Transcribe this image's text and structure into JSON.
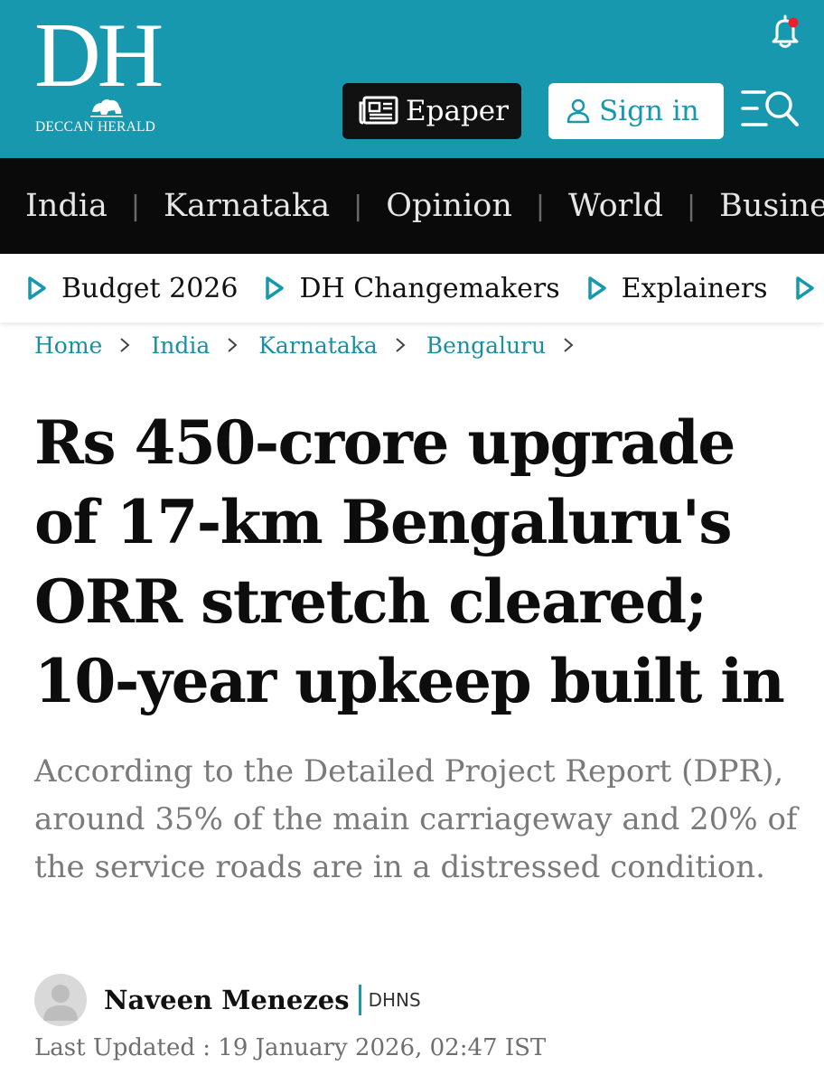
{
  "site": {
    "logo_mark": "DH",
    "logo_name": "DECCAN HERALD",
    "accent_color": "#1898ae"
  },
  "header": {
    "epaper_label": "Epaper",
    "signin_label": "Sign in",
    "icons": [
      "notification-bell-icon",
      "newspaper-icon",
      "user-icon",
      "menu-search-icon"
    ]
  },
  "main_nav": {
    "items": [
      "India",
      "Karnataka",
      "Opinion",
      "World",
      "Business"
    ]
  },
  "sub_nav": {
    "items": [
      "Budget 2026",
      "DH Changemakers",
      "Explainers"
    ]
  },
  "breadcrumb": {
    "items": [
      "Home",
      "India",
      "Karnataka",
      "Bengaluru"
    ]
  },
  "article": {
    "headline": "Rs 450-crore upgrade of 17-km Bengaluru's ORR stretch cleared; 10-year upkeep built in",
    "summary": "According to the Detailed Project Report (DPR), around 35% of the main carriageway and 20% of the service roads are in a distressed condition.",
    "author": "Naveen Menezes",
    "agency": "DHNS",
    "last_updated": "Last Updated : 19 January 2026, 02:47 IST"
  }
}
